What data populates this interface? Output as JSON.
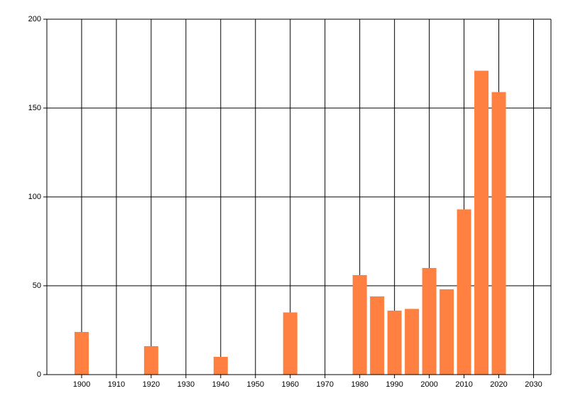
{
  "chart_data": {
    "type": "bar",
    "x": [
      1900,
      1920,
      1940,
      1960,
      1980,
      1985,
      1990,
      1995,
      2000,
      2005,
      2010,
      2015,
      2020
    ],
    "values": [
      24,
      16,
      10,
      35,
      56,
      44,
      36,
      37,
      60,
      48,
      93,
      171,
      159
    ],
    "color": "#ff8040",
    "xlim": [
      1890,
      2035
    ],
    "xticks": [
      1900,
      1910,
      1920,
      1930,
      1940,
      1950,
      1960,
      1970,
      1980,
      1990,
      2000,
      2010,
      2020,
      2030
    ],
    "ylim": [
      0,
      200
    ],
    "yticks": [
      0,
      50,
      100,
      150,
      200
    ],
    "grid": true
  }
}
